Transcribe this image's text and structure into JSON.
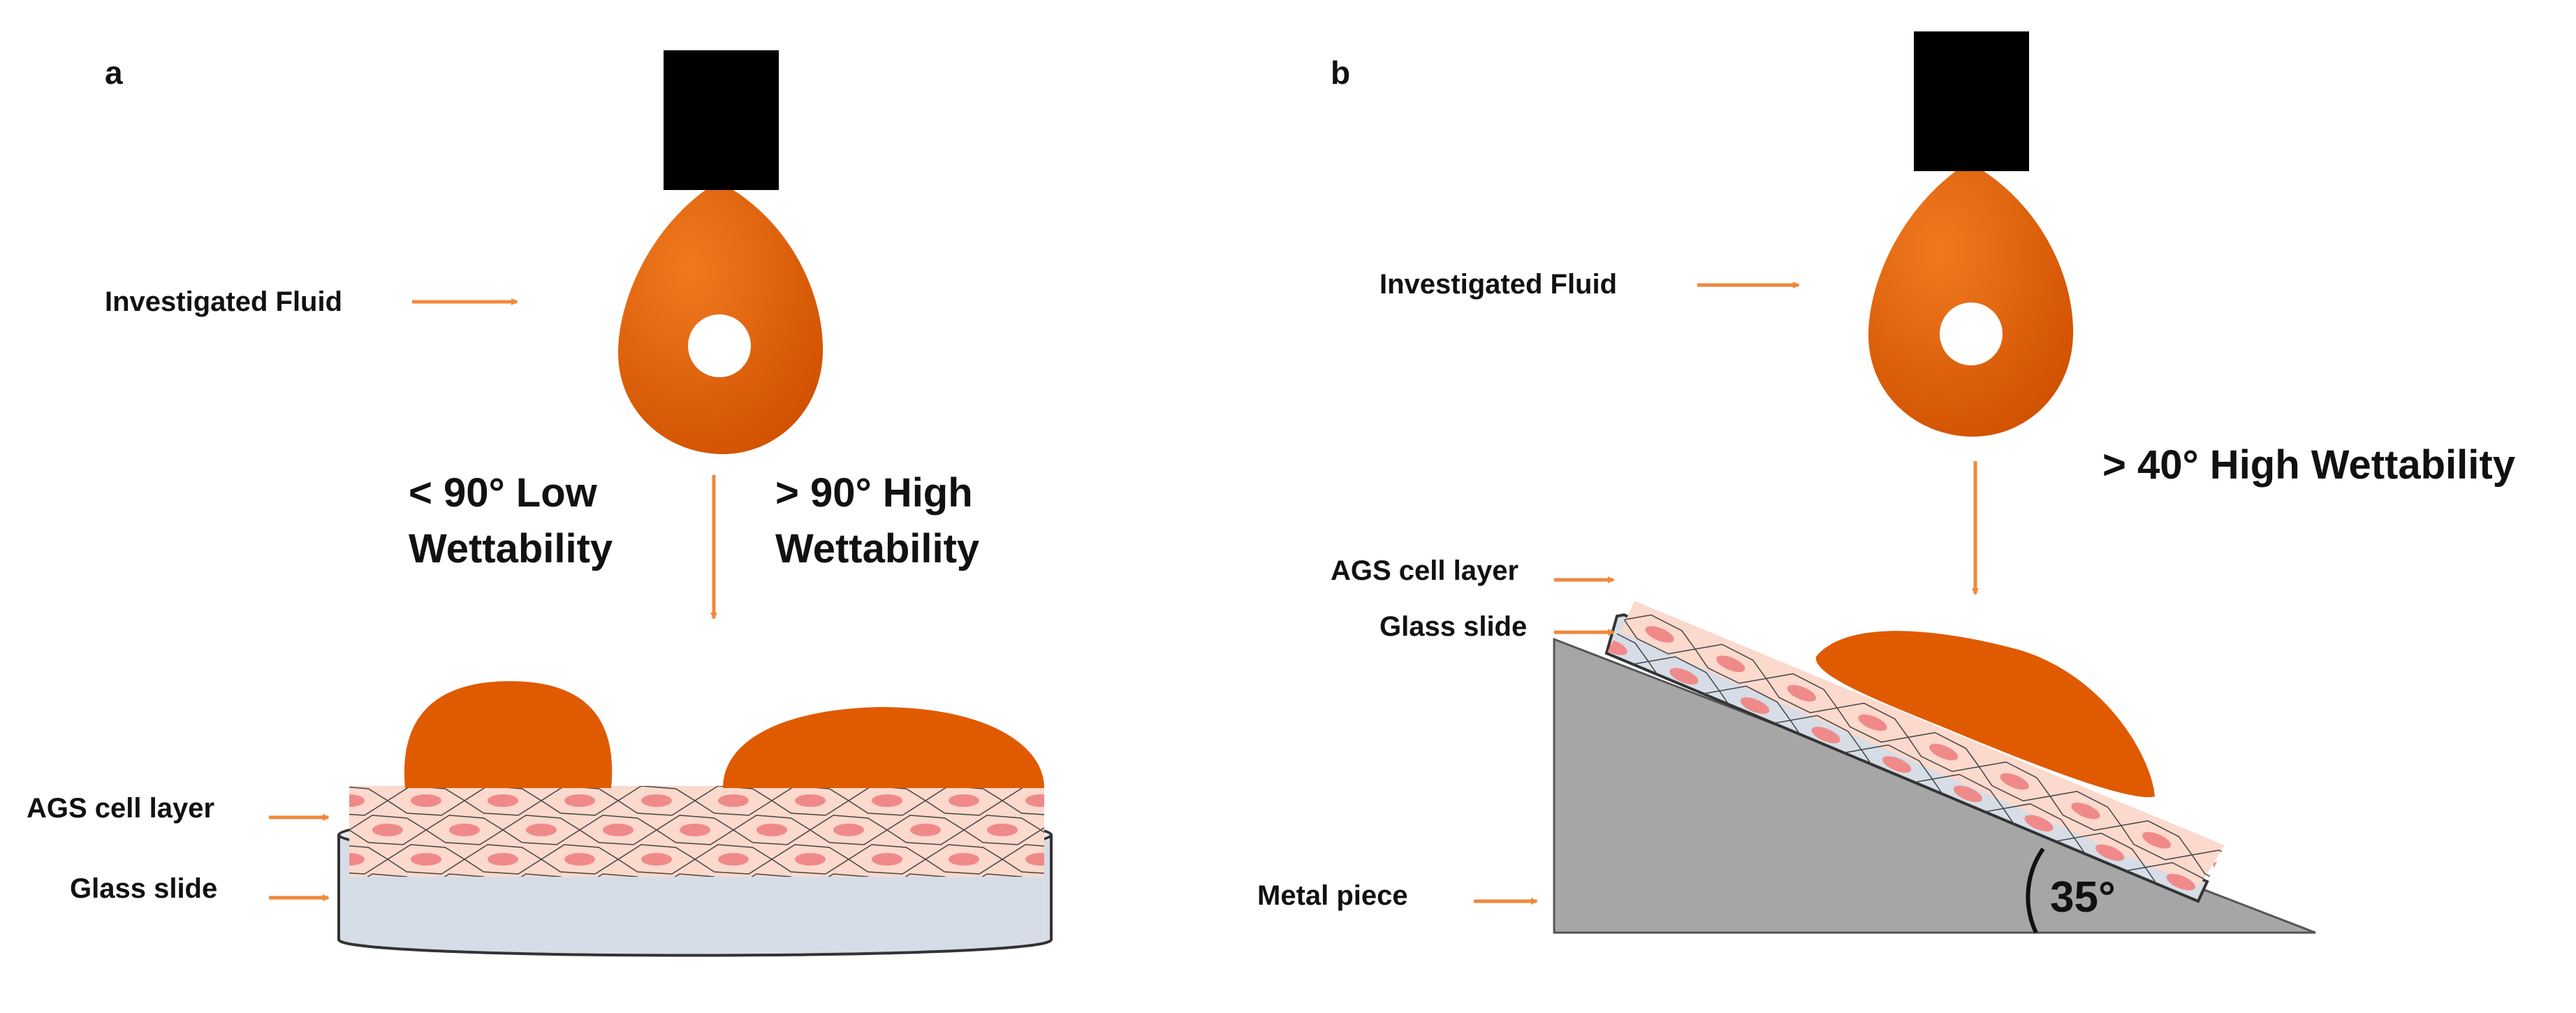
{
  "panel_a": {
    "letter": "a",
    "fluid_label": "Investigated Fluid",
    "low_wet_line1": "< 90° Low",
    "low_wet_line2": "Wettability",
    "high_wet_line1": "> 90° High",
    "high_wet_line2": "Wettability",
    "cell_layer_label": "AGS cell layer",
    "glass_slide_label": "Glass slide"
  },
  "panel_b": {
    "letter": "b",
    "fluid_label": "Investigated Fluid",
    "high_wet_label": "> 40° High Wettability",
    "cell_layer_label": "AGS cell layer",
    "glass_slide_label": "Glass slide",
    "metal_label": "Metal piece",
    "angle_label": "35°"
  },
  "colors": {
    "fluid": "#e05a00",
    "fluid_dark": "#c44b00",
    "arrow": "#f0883c",
    "cell_layer": "#fbd9cc",
    "cell_nucleus": "#f08a8a",
    "glass": "#d6dde6",
    "metal": "#a6a6a6",
    "nozzle": "#000000"
  }
}
